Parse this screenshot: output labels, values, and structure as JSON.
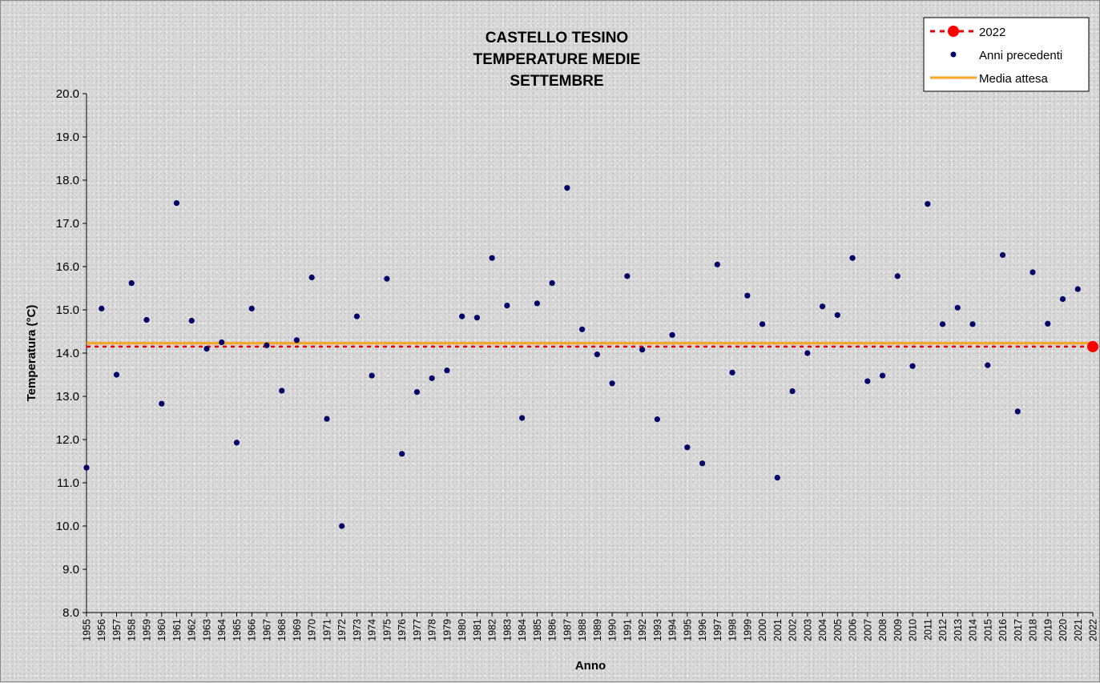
{
  "chart_data": {
    "type": "scatter",
    "title_lines": [
      "CASTELLO TESINO",
      "TEMPERATURE MEDIE",
      "SETTEMBRE"
    ],
    "xlabel": "Anno",
    "ylabel": "Temperatura (°C)",
    "ylim": [
      8.0,
      20.0
    ],
    "ytick_step": 1.0,
    "xlim": [
      1955,
      2022
    ],
    "grid": false,
    "legend_position": "top-right",
    "legend": {
      "current": "2022",
      "previous": "Anni precedenti",
      "mean": "Media attesa"
    },
    "colors": {
      "previous": "#000066",
      "current": "#ff0000",
      "mean": "#f5a623",
      "current_line": "#e60000"
    },
    "mean_value": 14.23,
    "current": {
      "year": 2022,
      "value": 14.15
    },
    "series": [
      {
        "name": "Anni precedenti",
        "x": [
          1955,
          1956,
          1957,
          1958,
          1959,
          1960,
          1961,
          1962,
          1963,
          1964,
          1965,
          1966,
          1967,
          1968,
          1969,
          1970,
          1971,
          1972,
          1973,
          1974,
          1975,
          1976,
          1977,
          1978,
          1979,
          1980,
          1981,
          1982,
          1983,
          1984,
          1985,
          1986,
          1987,
          1988,
          1989,
          1990,
          1991,
          1992,
          1993,
          1994,
          1995,
          1996,
          1997,
          1998,
          1999,
          2000,
          2001,
          2002,
          2003,
          2004,
          2005,
          2006,
          2007,
          2008,
          2009,
          2010,
          2011,
          2012,
          2013,
          2014,
          2015,
          2016,
          2017,
          2018,
          2019,
          2020,
          2021
        ],
        "values": [
          11.35,
          15.03,
          13.5,
          15.62,
          14.77,
          12.83,
          17.47,
          14.75,
          14.1,
          14.25,
          11.93,
          15.03,
          14.18,
          13.13,
          14.3,
          15.75,
          12.48,
          10.0,
          14.85,
          13.48,
          15.72,
          11.67,
          13.1,
          13.42,
          13.6,
          14.85,
          14.82,
          16.2,
          15.1,
          12.5,
          15.15,
          15.62,
          17.82,
          14.55,
          13.97,
          13.3,
          15.78,
          14.08,
          12.47,
          14.42,
          11.82,
          11.45,
          16.05,
          13.55,
          15.33,
          14.67,
          11.12,
          13.12,
          14.0,
          15.08,
          14.88,
          16.2,
          13.35,
          13.48,
          15.78,
          13.7,
          17.45,
          14.67,
          15.05,
          14.67,
          13.72,
          16.27,
          12.65,
          15.87,
          14.68,
          15.25,
          15.48
        ]
      },
      {
        "name": "2022",
        "x": [
          2022
        ],
        "values": [
          14.15
        ]
      },
      {
        "name": "Media attesa",
        "values": [
          14.23
        ]
      }
    ]
  }
}
